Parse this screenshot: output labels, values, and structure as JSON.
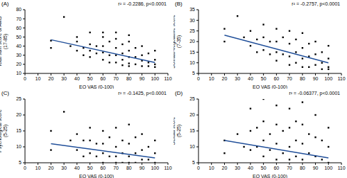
{
  "chart_data": [
    {
      "type": "scatter",
      "title": "(A)",
      "annotation": "r² = -0.2286, p<0.0001",
      "x_label": "EQ VAS (0-100)",
      "y_label": "Total sum score of AMS (17-85)",
      "xlim": [
        0,
        110
      ],
      "xticks": [
        0,
        10,
        20,
        30,
        40,
        50,
        60,
        70,
        80,
        90,
        100,
        110
      ],
      "ylim": [
        10,
        80
      ],
      "yticks": [
        10,
        20,
        30,
        40,
        50,
        60,
        70,
        80
      ],
      "grid": false,
      "series": [
        {
          "type": "scatter",
          "color": "#000000",
          "marker": "square",
          "x": [
            20,
            20,
            30,
            35,
            40,
            40,
            40,
            45,
            45,
            50,
            50,
            50,
            50,
            55,
            55,
            60,
            60,
            60,
            60,
            65,
            65,
            65,
            70,
            70,
            70,
            70,
            75,
            75,
            75,
            75,
            80,
            80,
            80,
            80,
            80,
            85,
            85,
            85,
            90,
            90,
            90,
            90,
            95,
            95,
            95,
            100,
            100,
            100,
            100,
            60,
            70,
            80
          ],
          "values": [
            46,
            38,
            72,
            40,
            45,
            35,
            50,
            38,
            30,
            55,
            42,
            35,
            28,
            40,
            32,
            50,
            40,
            33,
            25,
            45,
            30,
            22,
            48,
            38,
            30,
            22,
            42,
            32,
            25,
            19,
            45,
            35,
            28,
            21,
            18,
            38,
            28,
            20,
            40,
            30,
            24,
            18,
            32,
            22,
            18,
            35,
            25,
            20,
            17,
            55,
            55,
            52
          ]
        },
        {
          "type": "line",
          "color": "#1f4e99",
          "line_style": "solid",
          "x": [
            20,
            100
          ],
          "values": [
            47,
            22
          ]
        }
      ]
    },
    {
      "type": "scatter",
      "title": "(B)",
      "annotation": "r² = -0.2757, p<0.0001",
      "x_label": "EQ VAS (0-100)",
      "y_label": "Somato-vegetative score (7-35)",
      "xlim": [
        0,
        110
      ],
      "xticks": [
        0,
        10,
        20,
        30,
        40,
        50,
        60,
        70,
        80,
        90,
        100,
        110
      ],
      "ylim": [
        5,
        35
      ],
      "yticks": [
        5,
        10,
        15,
        20,
        25,
        30,
        35
      ],
      "grid": false,
      "series": [
        {
          "type": "scatter",
          "color": "#000000",
          "marker": "square",
          "x": [
            20,
            20,
            30,
            35,
            40,
            40,
            45,
            45,
            50,
            50,
            50,
            55,
            55,
            60,
            60,
            60,
            60,
            65,
            65,
            70,
            70,
            70,
            70,
            75,
            75,
            75,
            80,
            80,
            80,
            80,
            85,
            85,
            85,
            90,
            90,
            90,
            95,
            95,
            95,
            100,
            100,
            100,
            100
          ],
          "values": [
            26,
            20,
            32,
            22,
            25,
            18,
            21,
            15,
            28,
            22,
            16,
            20,
            14,
            26,
            20,
            15,
            11,
            22,
            14,
            25,
            19,
            13,
            9,
            21,
            15,
            10,
            24,
            17,
            12,
            8,
            19,
            13,
            8,
            20,
            14,
            9,
            15,
            10,
            7,
            18,
            12,
            8,
            7
          ]
        },
        {
          "type": "line",
          "color": "#1f4e99",
          "line_style": "solid",
          "x": [
            20,
            100
          ],
          "values": [
            23,
            10
          ]
        }
      ]
    },
    {
      "type": "scatter",
      "title": "(C)",
      "annotation": "r² = -0.1425, p<0.0001",
      "x_label": "EQ VAS (0-100)",
      "y_label": "Psychological score (5-25)",
      "xlim": [
        0,
        110
      ],
      "xticks": [
        0,
        10,
        20,
        30,
        40,
        50,
        60,
        70,
        80,
        90,
        100,
        110
      ],
      "ylim": [
        5,
        25
      ],
      "yticks": [
        5,
        10,
        15,
        20,
        25
      ],
      "grid": false,
      "series": [
        {
          "type": "scatter",
          "color": "#000000",
          "marker": "square",
          "x": [
            20,
            20,
            30,
            35,
            40,
            40,
            45,
            45,
            50,
            50,
            50,
            55,
            55,
            60,
            60,
            60,
            60,
            65,
            65,
            70,
            70,
            70,
            70,
            75,
            75,
            75,
            80,
            80,
            80,
            80,
            85,
            85,
            85,
            90,
            90,
            90,
            95,
            95,
            100,
            100,
            100
          ],
          "values": [
            15,
            9,
            21,
            12,
            14,
            9,
            12,
            7,
            16,
            12,
            8,
            11,
            7,
            15,
            11,
            8,
            5,
            13,
            7,
            16,
            10,
            7,
            5,
            12,
            8,
            5,
            17,
            11,
            7,
            5,
            13,
            8,
            5,
            14,
            9,
            6,
            10,
            6,
            12,
            8,
            5
          ]
        },
        {
          "type": "line",
          "color": "#1f4e99",
          "line_style": "solid",
          "x": [
            20,
            100
          ],
          "values": [
            11,
            6.5
          ]
        }
      ]
    },
    {
      "type": "scatter",
      "title": "(D)",
      "annotation": "r² = -0.06377, p<0.0001",
      "x_label": "EQ VAS (0-100)",
      "y_label": "Sexual score (5-25)",
      "xlim": [
        0,
        110
      ],
      "xticks": [
        0,
        10,
        20,
        30,
        40,
        50,
        60,
        70,
        80,
        90,
        100,
        110
      ],
      "ylim": [
        5,
        25
      ],
      "yticks": [
        5,
        10,
        15,
        20,
        25
      ],
      "grid": false,
      "series": [
        {
          "type": "scatter",
          "color": "#000000",
          "marker": "square",
          "x": [
            20,
            20,
            30,
            35,
            40,
            40,
            40,
            45,
            45,
            50,
            50,
            50,
            50,
            55,
            55,
            60,
            60,
            60,
            60,
            65,
            65,
            70,
            70,
            70,
            70,
            75,
            75,
            75,
            80,
            80,
            80,
            80,
            85,
            85,
            90,
            90,
            90,
            95,
            95,
            100,
            100,
            100
          ],
          "values": [
            12,
            8,
            14,
            10,
            22,
            15,
            9,
            16,
            10,
            25,
            18,
            12,
            7,
            14,
            9,
            23,
            17,
            11,
            6,
            15,
            8,
            22,
            16,
            10,
            6,
            18,
            12,
            7,
            24,
            17,
            11,
            6,
            14,
            8,
            20,
            13,
            7,
            12,
            6,
            16,
            10,
            5
          ]
        },
        {
          "type": "line",
          "color": "#1f4e99",
          "line_style": "solid",
          "x": [
            20,
            100
          ],
          "values": [
            12,
            6.5
          ]
        }
      ]
    }
  ]
}
